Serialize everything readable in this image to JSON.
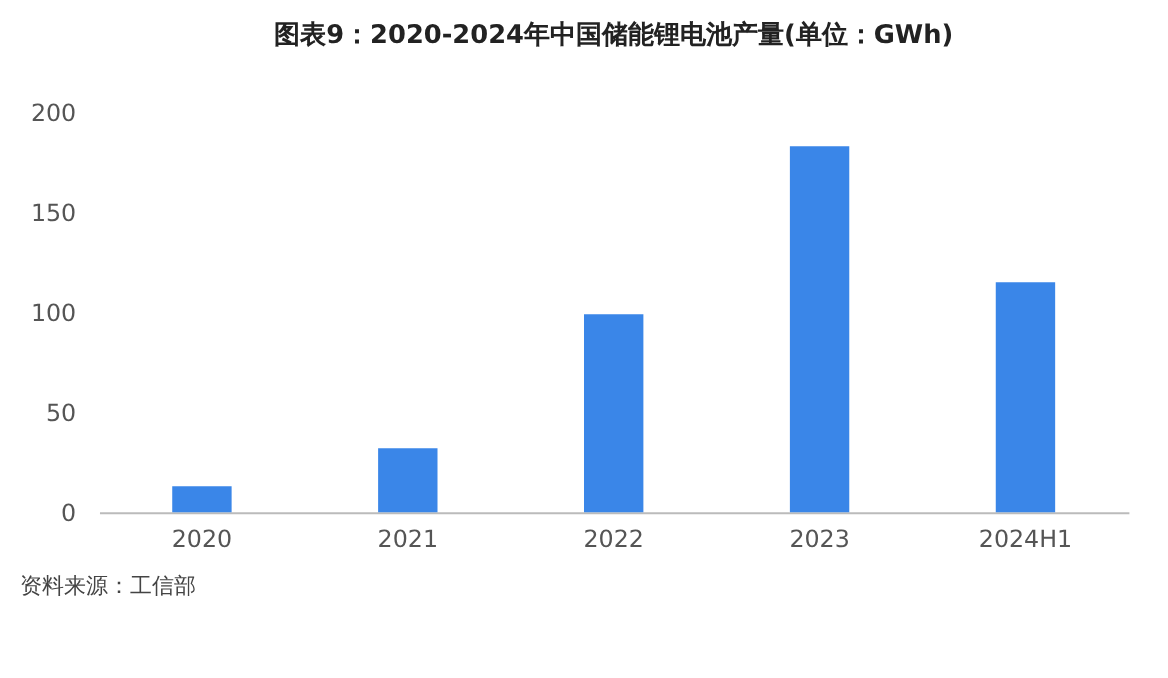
{
  "chart_data": {
    "type": "bar",
    "title": "图表9：2020-2024年中国储能锂电池产量(单位：GWh)",
    "categories": [
      "2020",
      "2021",
      "2022",
      "2023",
      "2024H1"
    ],
    "series": [
      {
        "color": "#3a86e8",
        "values": [
          13,
          32,
          99,
          183,
          115
        ]
      }
    ],
    "ylim": [
      0,
      200
    ],
    "yticks": [
      0,
      50,
      100,
      150,
      200
    ],
    "grid": false,
    "legend": false,
    "annotations": [
      "资料来源：工信部"
    ]
  }
}
